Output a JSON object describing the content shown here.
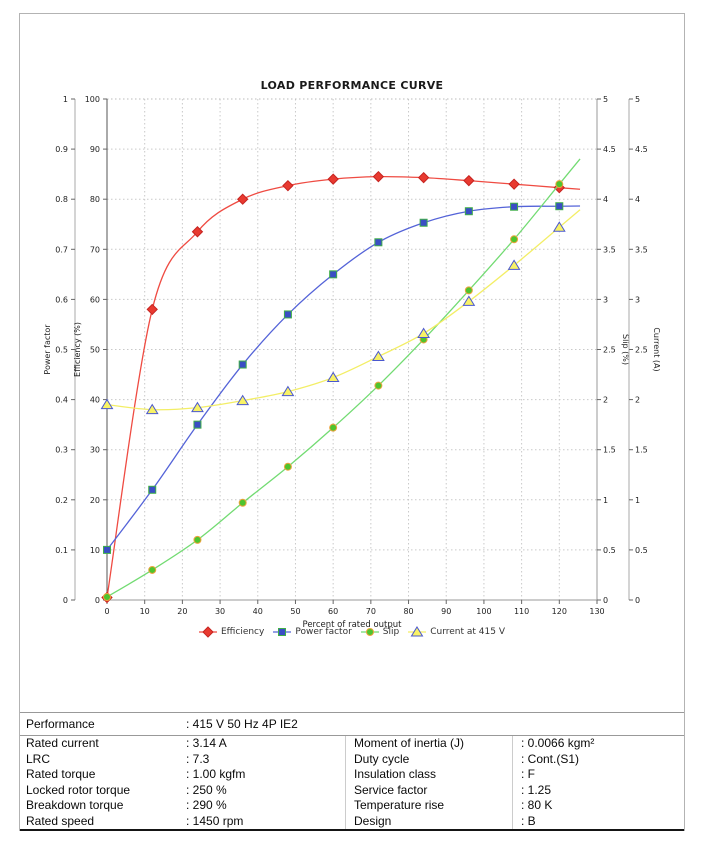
{
  "chart_data": {
    "type": "line",
    "title": "LOAD PERFORMANCE CURVE",
    "xlabel": "Percent of rated output",
    "xlim": [
      0,
      130
    ],
    "x_tick_step": 10,
    "grid": true,
    "legend_position": "bottom",
    "x": [
      0,
      12,
      24,
      36,
      48,
      60,
      72,
      84,
      96,
      108,
      120
    ],
    "series": [
      {
        "name": "Efficiency",
        "axis": "efficiency",
        "marker": "diamond",
        "color": "#ef4b42",
        "marker_fill": "#e83a30",
        "marker_stroke": "#c62320",
        "values": [
          0.5,
          58,
          73.5,
          80,
          82.7,
          84,
          84.5,
          84.3,
          83.7,
          83,
          82.3
        ]
      },
      {
        "name": "Power factor",
        "axis": "power_factor",
        "marker": "square",
        "color": "#5463d8",
        "marker_fill": "#3a4ec4",
        "marker_stroke": "#3fae49",
        "values": [
          0.1,
          0.22,
          0.35,
          0.47,
          0.57,
          0.65,
          0.714,
          0.753,
          0.776,
          0.785,
          0.786
        ]
      },
      {
        "name": "Slip",
        "axis": "slip",
        "marker": "circle",
        "color": "#72db72",
        "marker_fill": "#4ec42e",
        "marker_stroke": "#eda33c",
        "values": [
          0.03,
          0.3,
          0.6,
          0.97,
          1.33,
          1.72,
          2.14,
          2.6,
          3.09,
          3.6,
          4.15
        ]
      },
      {
        "name": "Current at 415 V",
        "axis": "current",
        "marker": "triangle",
        "color": "#f3ee66",
        "marker_fill": "#f8f266",
        "marker_stroke": "#4a58cf",
        "values": [
          1.95,
          1.9,
          1.92,
          1.99,
          2.08,
          2.22,
          2.43,
          2.66,
          2.98,
          3.34,
          3.72
        ]
      }
    ],
    "axes": {
      "power_factor": {
        "label": "Power factor",
        "min": 0,
        "max": 1,
        "step": 0.1
      },
      "efficiency": {
        "label": "Efficiency (%)",
        "min": 0,
        "max": 100,
        "step": 10
      },
      "slip": {
        "label": "Slip (%)",
        "min": 0,
        "max": 5,
        "step": 0.5
      },
      "current": {
        "label": "Current (A)",
        "min": 0,
        "max": 5,
        "step": 0.5
      }
    }
  },
  "table": {
    "performance": {
      "label": "Performance",
      "value": ": 415 V 50 Hz 4P IE2"
    },
    "left_rows": [
      {
        "label": "Rated current",
        "value": ": 3.14 A"
      },
      {
        "label": "LRC",
        "value": ": 7.3"
      },
      {
        "label": "Rated torque",
        "value": ": 1.00 kgfm"
      },
      {
        "label": "Locked rotor torque",
        "value": ": 250 %"
      },
      {
        "label": "Breakdown torque",
        "value": ": 290 %"
      },
      {
        "label": "Rated speed",
        "value": ": 1450 rpm"
      }
    ],
    "right_rows": [
      {
        "label": "Moment of inertia (J)",
        "value": ": 0.0066 kgm²"
      },
      {
        "label": "Duty cycle",
        "value": ": Cont.(S1)"
      },
      {
        "label": "Insulation class",
        "value": ": F"
      },
      {
        "label": "Service factor",
        "value": ": 1.25"
      },
      {
        "label": "Temperature rise",
        "value": ": 80 K"
      },
      {
        "label": "Design",
        "value": ": B"
      }
    ]
  }
}
